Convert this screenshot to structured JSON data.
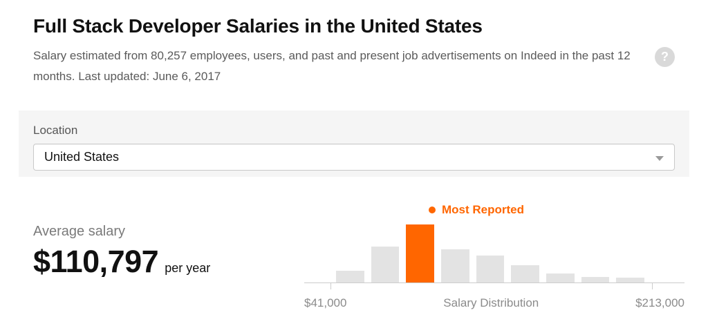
{
  "header": {
    "title": "Full Stack Developer Salaries in the United States",
    "subtitle": "Salary estimated from 80,257 employees, users, and past and present job advertisements on Indeed in the past 12 months. Last updated: June 6, 2017",
    "help_glyph": "?"
  },
  "location": {
    "label": "Location",
    "value": "United States"
  },
  "salary": {
    "label": "Average salary",
    "amount": "$110,797",
    "period": "per year"
  },
  "chart_data": {
    "type": "bar",
    "title": "Salary Distribution",
    "xlabel": "Salary Distribution",
    "x_min_label": "$41,000",
    "x_max_label": "$213,000",
    "annotation": "Most Reported",
    "values": [
      20,
      62,
      100,
      57,
      47,
      30,
      16,
      10,
      8
    ],
    "highlight_index": 2,
    "bar_color": "#e3e3e3",
    "highlight_color": "#ff6600",
    "axis_color": "#cccccc"
  }
}
